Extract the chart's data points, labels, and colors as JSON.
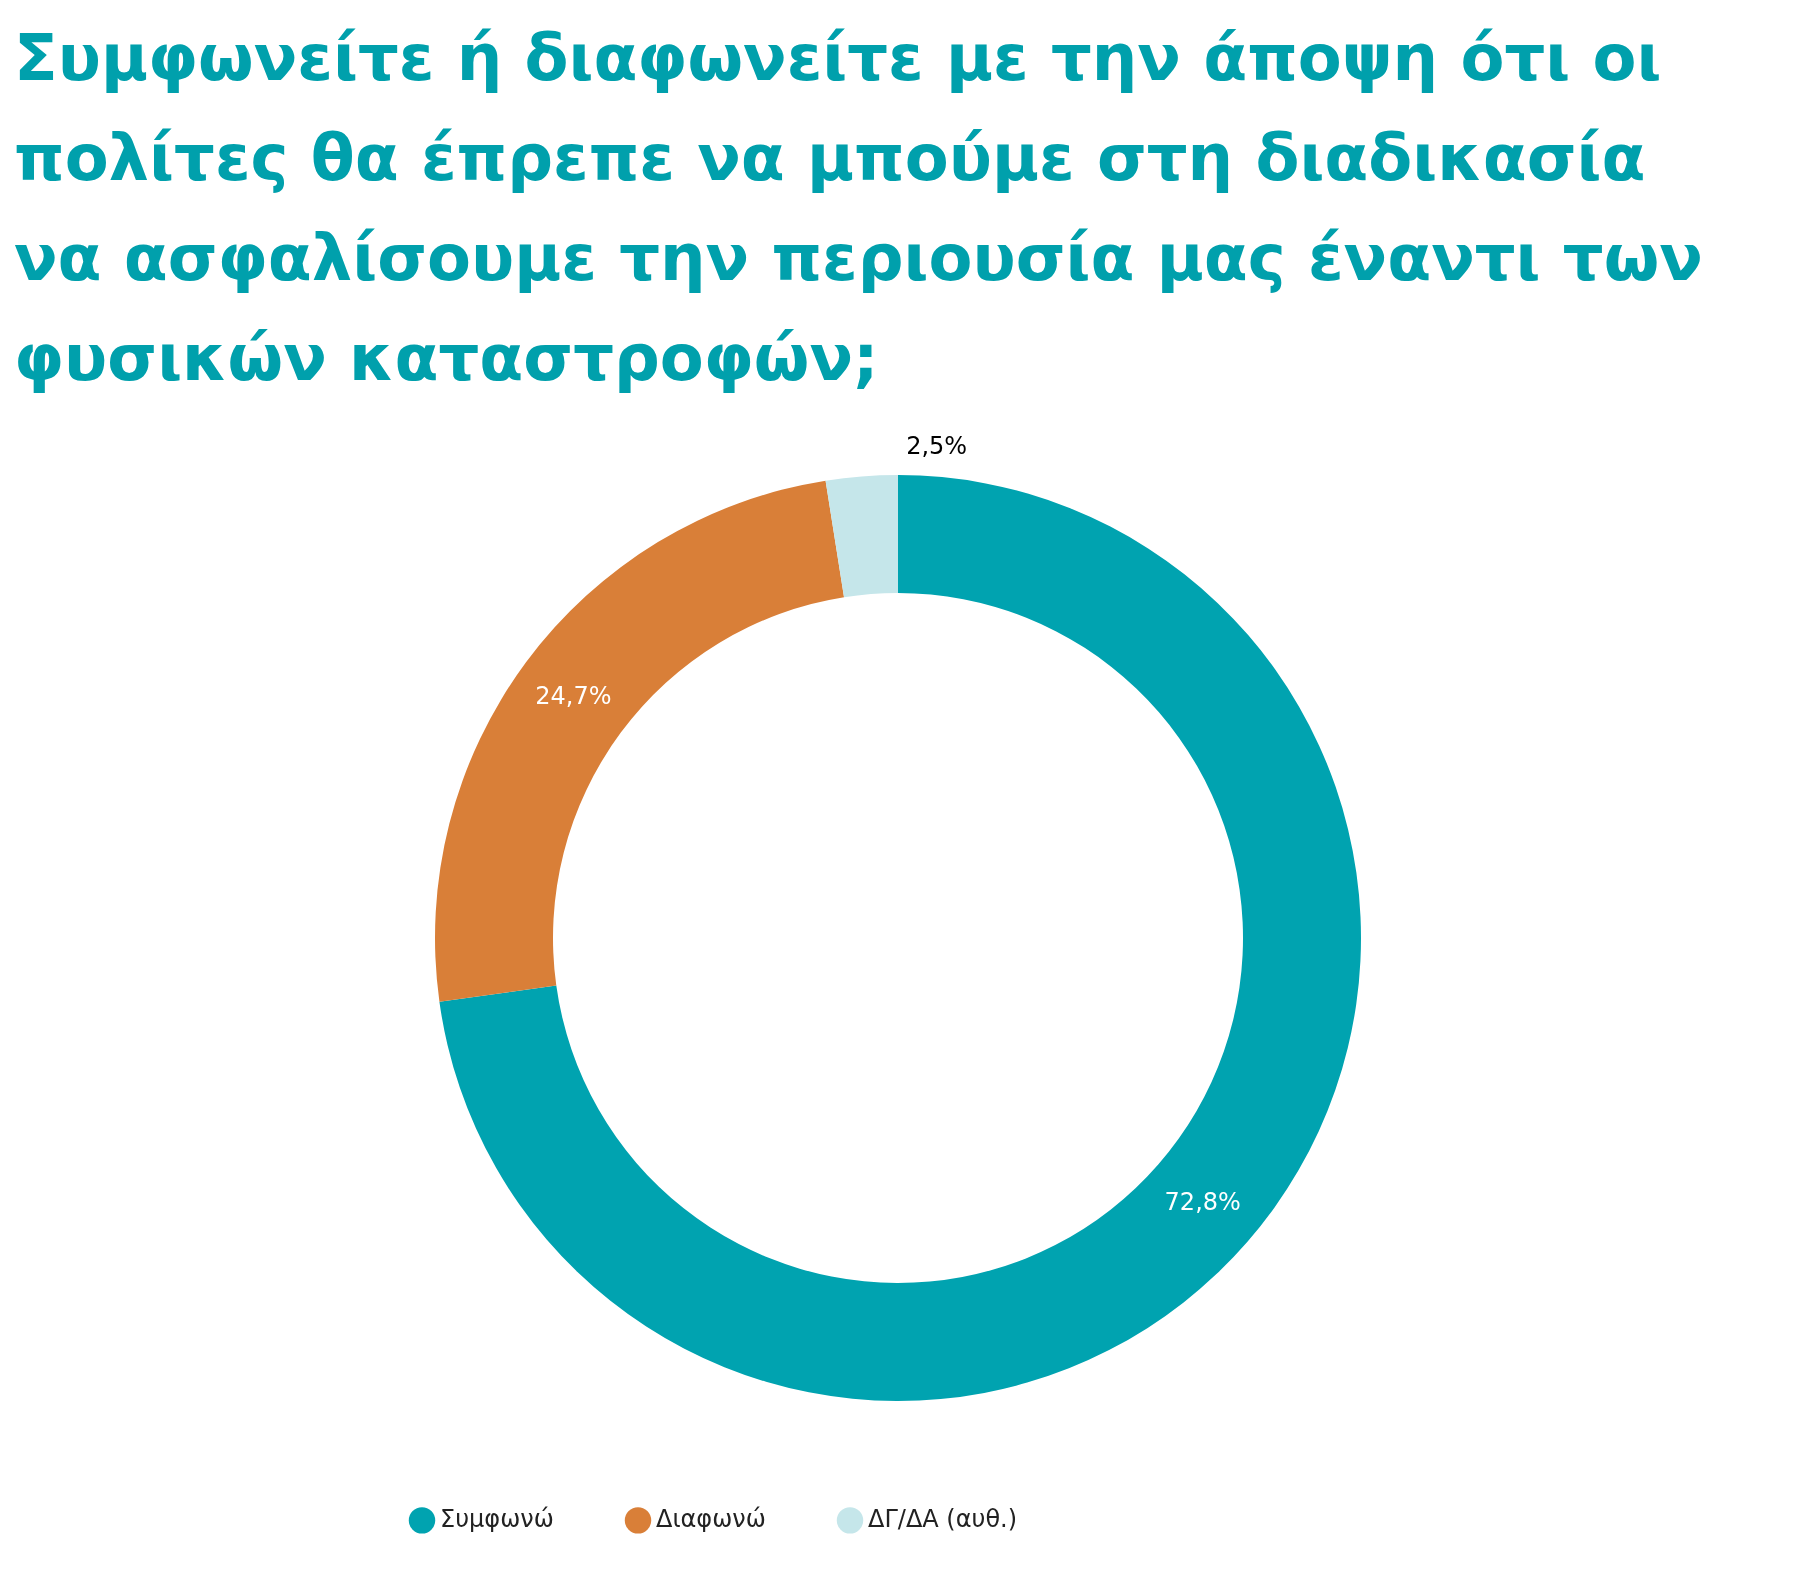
{
  "chart_data": {
    "type": "donut",
    "title": "Συμφωνείτε ή διαφωνείτε με την άποψη ότι οι πολίτες θα έπρεπε να μπούμε στη διαδικασία να ασφαλίσουμε την περιουσία μας έναντι των φυσικών καταστροφών;",
    "categories": [
      "Συμφωνώ",
      "Διαφωνώ",
      "ΔΓ/ΔΑ (αυθ.)"
    ],
    "values": [
      72.8,
      24.7,
      2.5
    ],
    "colors": [
      "#00a3b0",
      "#d97f38",
      "#c5e6ea"
    ],
    "value_labels": [
      "72,8%",
      "24,7%",
      "2,5%"
    ],
    "legend": "bottom"
  }
}
